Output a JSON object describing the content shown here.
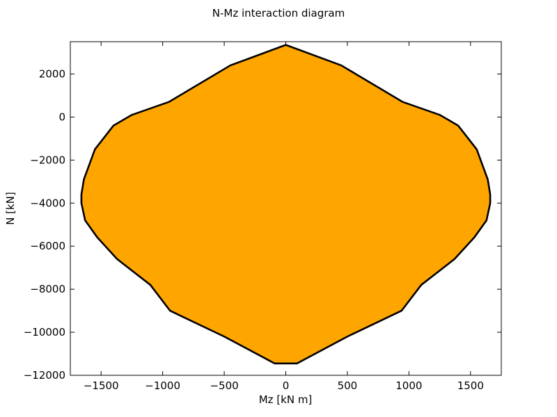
{
  "chart_data": {
    "type": "area",
    "title": "N-Mz interaction diagram",
    "xlabel": "Mz [kN m]",
    "ylabel": "N [kN]",
    "xlim": [
      -1750,
      1750
    ],
    "ylim": [
      -12000,
      3500
    ],
    "x_ticks": [
      -1500,
      -1000,
      -500,
      0,
      500,
      1000,
      1500
    ],
    "x_tick_labels": [
      "−1500",
      "−1000",
      "−500",
      "0",
      "500",
      "1000",
      "1500"
    ],
    "y_ticks": [
      2000,
      0,
      -2000,
      -4000,
      -6000,
      -8000,
      -10000,
      -12000
    ],
    "y_tick_labels": [
      "2000",
      "0",
      "−2000",
      "−4000",
      "−6000",
      "−8000",
      "−10000",
      "−12000"
    ],
    "grid": false,
    "fill_color": "#FFA500",
    "edge_color": "#000000",
    "series": [
      {
        "x": [
          0,
          450,
          950,
          1250,
          1400,
          1550,
          1640,
          1660,
          1660,
          1630,
          1530,
          1370,
          1100,
          940,
          500,
          90,
          -90,
          -500,
          -940,
          -1100,
          -1370,
          -1530,
          -1630,
          -1660,
          -1660,
          -1640,
          -1550,
          -1400,
          -1250,
          -950,
          -450,
          0
        ],
        "y": [
          3350,
          2400,
          700,
          100,
          -400,
          -1500,
          -2900,
          -3600,
          -4000,
          -4800,
          -5600,
          -6600,
          -7800,
          -9000,
          -10200,
          -11450,
          -11450,
          -10200,
          -9000,
          -7800,
          -6600,
          -5600,
          -4800,
          -4000,
          -3600,
          -2900,
          -1500,
          -400,
          100,
          700,
          2400,
          3350
        ]
      }
    ]
  }
}
